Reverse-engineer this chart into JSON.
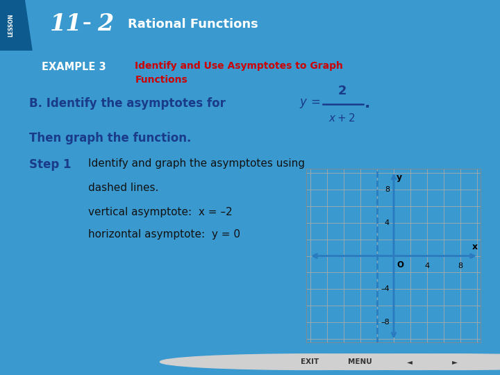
{
  "title_bar_color": "#1a7abf",
  "title_bar_dark": "#0d5a8f",
  "lesson_label": "LESSON",
  "example_box_color": "#6aaa3a",
  "example_label": "EXAMPLE 3",
  "example_title_color": "#cc0000",
  "example_title_line1": "Identify and Use Asymptotes to Graph",
  "example_title_line2": "Functions",
  "body_bg": "#f5f5f5",
  "slide_bg": "#3a9ad0",
  "main_text_color": "#1a3a8a",
  "black_text": "#111111",
  "then_graph": "Then graph the function.",
  "step1_label": "Step 1",
  "step1_text_line1": "Identify and graph the asymptotes using",
  "step1_text_line2": "dashed lines.",
  "va_text": "vertical asymptote:  x = –2",
  "ha_text": "horizontal asymptote:  y = 0",
  "graph_axis_color": "#2a7abf",
  "graph_grid_color": "#aaaaaa",
  "graph_bg": "#ffffff",
  "graph_dashed_color": "#2a7abf",
  "x_axis_label": "x",
  "y_axis_label": "y",
  "origin_label": "O",
  "x_ticks": [
    4,
    8
  ],
  "y_ticks": [
    8,
    4,
    -4,
    -8
  ],
  "vertical_asymptote": -2,
  "horizontal_asymptote": 0,
  "border_color": "#c8a014",
  "footer_bg": "#c8a014",
  "white": "#ffffff"
}
